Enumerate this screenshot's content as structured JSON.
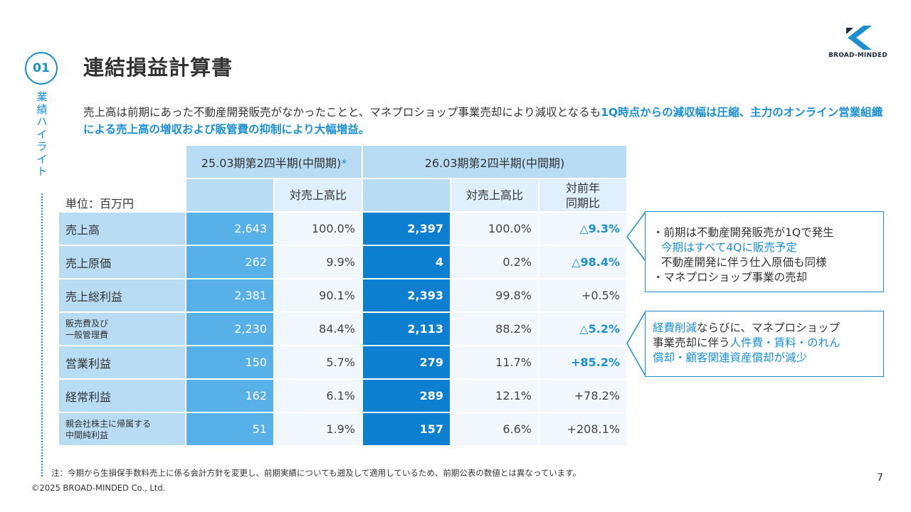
{
  "section": {
    "number": "01",
    "label": "業績ハイライト"
  },
  "title": "連結損益計算書",
  "logo": {
    "text": "BROAD-MINDED",
    "brand_color": "#1a8fd1",
    "icon": "broad-minded-logo-icon"
  },
  "intro": {
    "normal": "売上高は前期にあった不動産開発販売がなかったことと、マネプロショップ事業売却により減収となるも",
    "highlight": "1Q時点からの減収幅は圧縮、主力のオンライン営業組織による売上高の増収および販管費の抑制により大幅増益。"
  },
  "table": {
    "unit_label": "単位：百万円",
    "prev_period": "25.03期第2四半期(中間期)",
    "prev_period_mark": "*",
    "curr_period": "26.03期第2四半期(中間期)",
    "ratio_header": "対売上高比",
    "yoy_header_1": "対前年",
    "yoy_header_2": "同期比",
    "rows": [
      {
        "label": "売上高",
        "prev": "2,643",
        "prev_ratio": "100.0%",
        "curr": "2,397",
        "curr_ratio": "100.0%",
        "yoy": "△9.3%"
      },
      {
        "label": "売上原価",
        "prev": "262",
        "prev_ratio": "9.9%",
        "curr": "4",
        "curr_ratio": "0.2%",
        "yoy": "△98.4%"
      },
      {
        "label": "売上総利益",
        "prev": "2,381",
        "prev_ratio": "90.1%",
        "curr": "2,393",
        "curr_ratio": "99.8%",
        "yoy": "+0.5%"
      },
      {
        "label_1": "販売費及び",
        "label_2": "一般管理費",
        "prev": "2,230",
        "prev_ratio": "84.4%",
        "curr": "2,113",
        "curr_ratio": "88.2%",
        "yoy": "△5.2%"
      },
      {
        "label": "営業利益",
        "prev": "150",
        "prev_ratio": "5.7%",
        "curr": "279",
        "curr_ratio": "11.7%",
        "yoy": "+85.2%"
      },
      {
        "label": "経常利益",
        "prev": "162",
        "prev_ratio": "6.1%",
        "curr": "289",
        "curr_ratio": "12.1%",
        "yoy": "+78.2%"
      },
      {
        "label_1": "親会社株主に帰属する",
        "label_2": "中間純利益",
        "prev": "51",
        "prev_ratio": "1.9%",
        "curr": "157",
        "curr_ratio": "6.6%",
        "yoy": "+208.1%"
      }
    ]
  },
  "callout1": {
    "b1": "前期は不動産開発販売が1Qで発生",
    "l2": "今期はすべて4Qに販売予定",
    "l3": "不動産開発に伴う仕入原価も同様",
    "b2": "マネプロショップ事業の売却"
  },
  "callout2": {
    "a1": "経費削減",
    "a2": "ならびに、マネプロショップ",
    "b1": "事業売却に伴う",
    "b2": "人件費・賃料・のれん",
    "c1": "償却・顧客関連資産償却が減少"
  },
  "note": "注：今期から生損保手数料売上に係る会計方針を変更し、前期実績についても遡及して適用しているため、前期公表の数値とは異なっています。",
  "copyright": "©2025 BROAD-MINDED Co., Ltd.",
  "page_number": "7"
}
